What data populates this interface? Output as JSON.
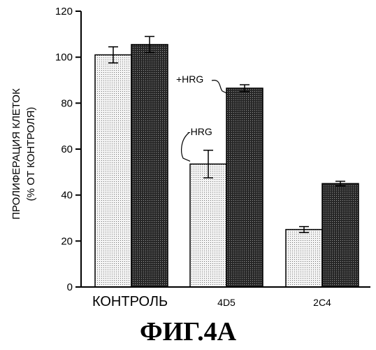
{
  "figure": {
    "caption": "ФИГ.4А"
  },
  "chart_data": {
    "type": "bar",
    "title": "",
    "ylabel_line1": "ПРОЛИФЕРАЦИЯ КЛЕТОК",
    "ylabel_line2": "(% ОТ КОНТРОЛЯ)",
    "xlabel": "",
    "ylim": [
      0,
      120
    ],
    "yticks": [
      0,
      20,
      40,
      60,
      80,
      100,
      120
    ],
    "categories": [
      "КОНТРОЛЬ",
      "4D5",
      "2C4"
    ],
    "series": [
      {
        "name": "-HRG",
        "values": [
          101,
          53.5,
          25
        ],
        "errors": [
          3.5,
          6,
          1.3
        ],
        "fill": "light-stipple"
      },
      {
        "name": "+HRG",
        "values": [
          105.5,
          86.5,
          45
        ],
        "errors": [
          3.5,
          1.5,
          1
        ],
        "fill": "dark-stipple"
      }
    ],
    "annotations": [
      {
        "text": "+HRG",
        "series": 1,
        "category": 1
      },
      {
        "text": "-HRG",
        "series": 0,
        "category": 1
      }
    ],
    "grid": false,
    "legend": "none"
  }
}
